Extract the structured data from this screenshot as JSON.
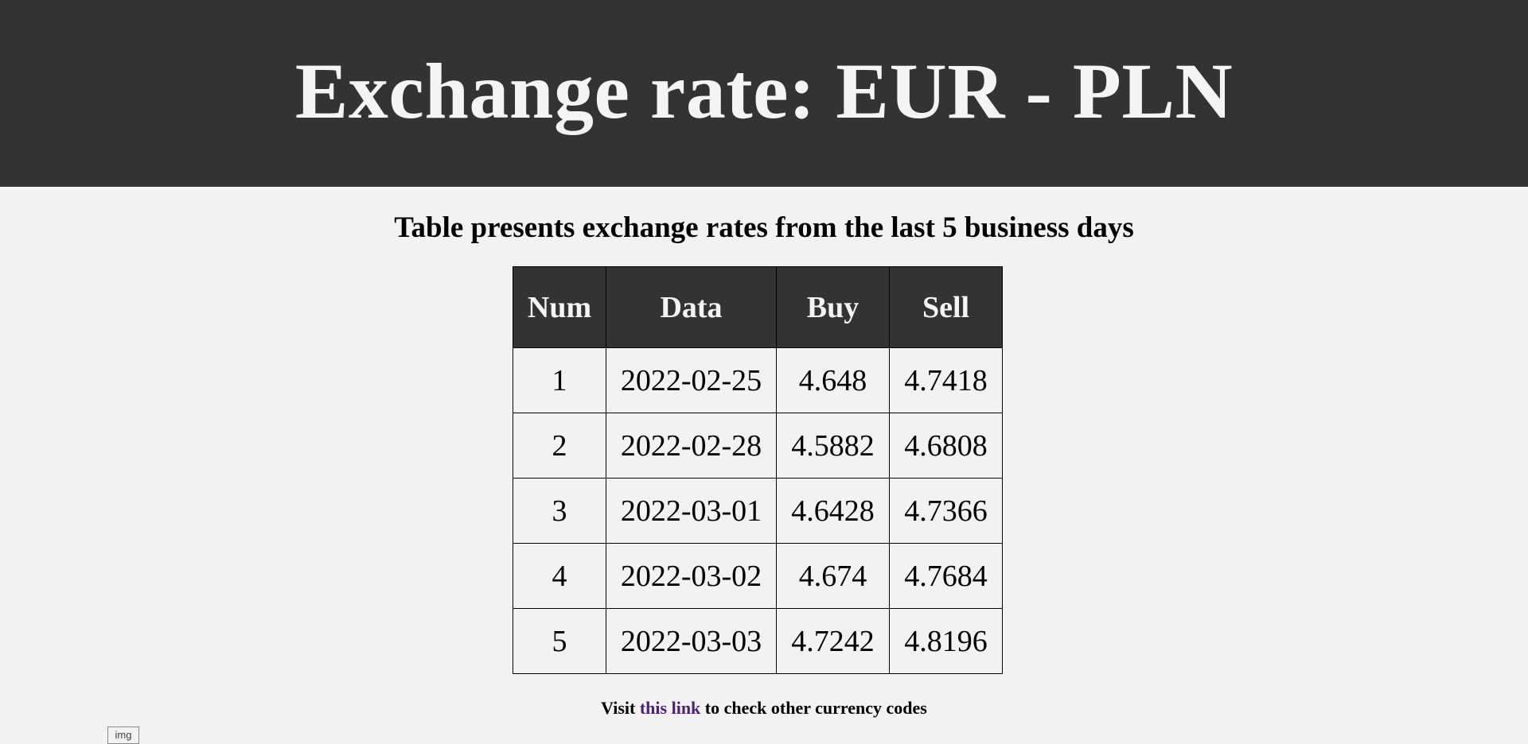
{
  "header": {
    "title": "Exchange rate: EUR - PLN"
  },
  "subtitle": "Table presents exchange rates from the last 5 business days",
  "table": {
    "headers": [
      "Num",
      "Data",
      "Buy",
      "Sell"
    ],
    "rows": [
      [
        "1",
        "2022-02-25",
        "4.648",
        "4.7418"
      ],
      [
        "2",
        "2022-02-28",
        "4.5882",
        "4.6808"
      ],
      [
        "3",
        "2022-03-01",
        "4.6428",
        "4.7366"
      ],
      [
        "4",
        "2022-03-02",
        "4.674",
        "4.7684"
      ],
      [
        "5",
        "2022-03-03",
        "4.7242",
        "4.8196"
      ]
    ]
  },
  "footer": {
    "prefix": "Visit ",
    "link_text": "this link",
    "suffix": " to check other currency codes"
  },
  "broken_image": {
    "alt": "img"
  },
  "colors": {
    "header_bg": "#333333",
    "page_bg": "#f2f2f2",
    "link": "#4b1f7a"
  }
}
